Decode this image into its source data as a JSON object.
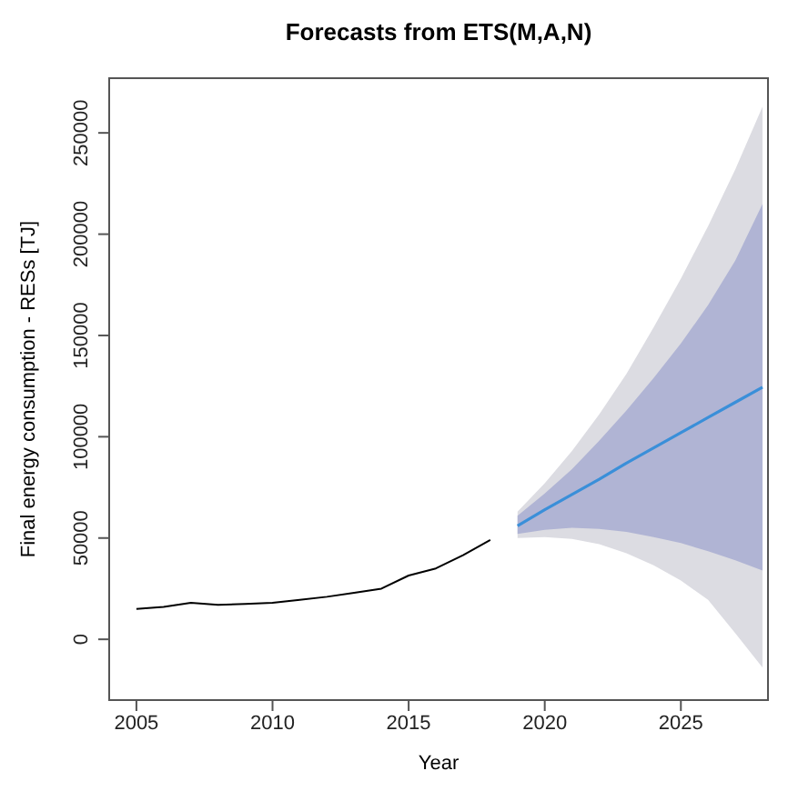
{
  "chart_data": {
    "type": "line",
    "title": "Forecasts from ETS(M,A,N)",
    "xlabel": "Year",
    "ylabel": "Final energy consumption - RESs [TJ]",
    "xlim": [
      2004,
      2028.2
    ],
    "xticks": [
      2005,
      2010,
      2015,
      2020,
      2025
    ],
    "ylim": [
      -30000,
      277000
    ],
    "yticks": [
      0,
      50000,
      100000,
      150000,
      200000,
      250000
    ],
    "grid": false,
    "legend": false,
    "series": [
      {
        "type": "line",
        "color": "#000000",
        "x": [
          2005,
          2006,
          2007,
          2008,
          2009,
          2010,
          2011,
          2012,
          2013,
          2014,
          2015,
          2016,
          2017,
          2018
        ],
        "values": [
          15000,
          16000,
          18000,
          17000,
          17500,
          18000,
          19500,
          21000,
          23000,
          25000,
          31500,
          35000,
          41500,
          49000
        ]
      },
      {
        "type": "area",
        "color": "#dcdce2",
        "x": [
          2019,
          2020,
          2021,
          2022,
          2023,
          2024,
          2025,
          2026,
          2027,
          2028
        ],
        "values": [
          null,
          null,
          null,
          null,
          null,
          null,
          null,
          null,
          null,
          null
        ],
        "lower": [
          50000,
          50500,
          49500,
          47000,
          42500,
          36500,
          29000,
          19500,
          3000,
          -14000
        ],
        "upper": [
          63000,
          77000,
          93000,
          111000,
          131000,
          154000,
          178000,
          204000,
          232000,
          263000
        ]
      },
      {
        "type": "area",
        "color": "#b0b4d4",
        "x": [
          2019,
          2020,
          2021,
          2022,
          2023,
          2024,
          2025,
          2026,
          2027,
          2028
        ],
        "values": [
          null,
          null,
          null,
          null,
          null,
          null,
          null,
          null,
          null,
          null
        ],
        "lower": [
          52000,
          54000,
          55000,
          54500,
          53000,
          50500,
          47500,
          43500,
          39000,
          34000
        ],
        "upper": [
          61000,
          72000,
          84000,
          98000,
          113000,
          129000,
          146000,
          165000,
          187000,
          215000
        ]
      },
      {
        "type": "line",
        "color": "#3a8fd9",
        "x": [
          2019,
          2020,
          2021,
          2022,
          2023,
          2024,
          2025,
          2026,
          2027,
          2028
        ],
        "values": [
          56000,
          64000,
          71500,
          79000,
          87000,
          94500,
          102000,
          109500,
          117000,
          124500
        ]
      }
    ]
  }
}
